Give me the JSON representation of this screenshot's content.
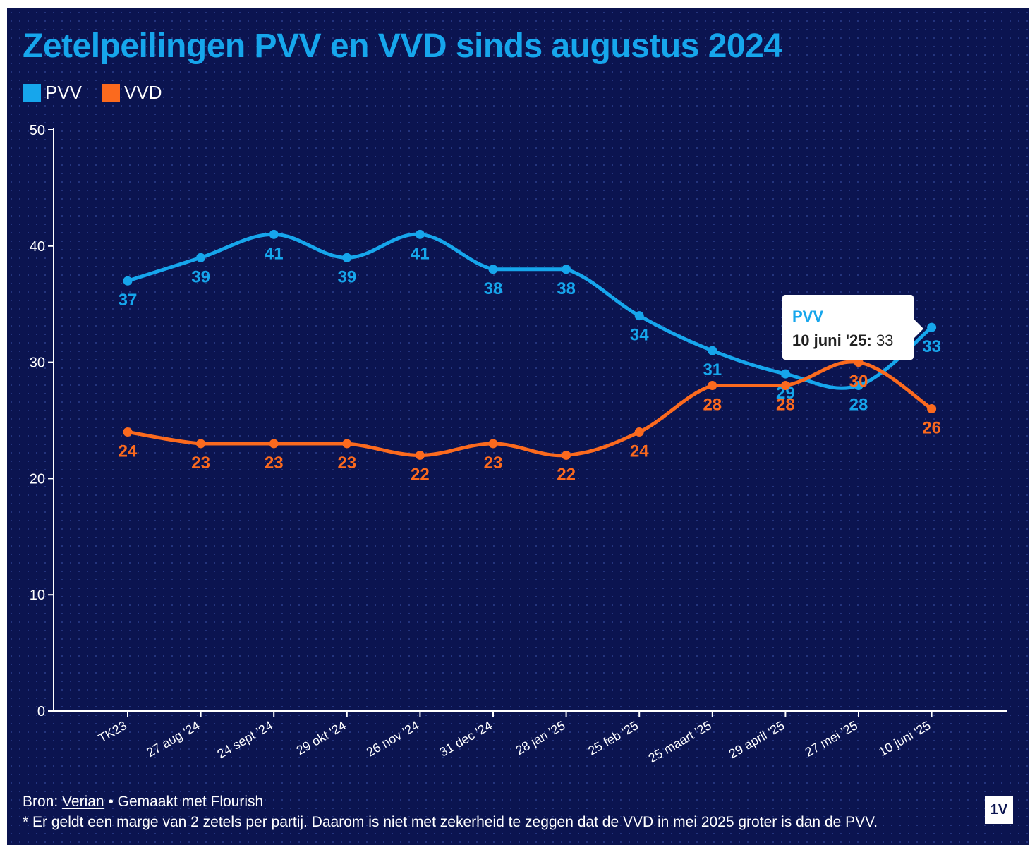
{
  "title": "Zetelpeilingen PVV en VVD sinds augustus 2024",
  "legend": [
    {
      "label": "PVV",
      "color": "#16a6ec"
    },
    {
      "label": "VVD",
      "color": "#fb6a1e"
    }
  ],
  "chart_data": {
    "type": "line",
    "categories": [
      "TK23",
      "27 aug '24",
      "24 sept '24",
      "29 okt '24",
      "26 nov '24",
      "31 dec '24",
      "28 jan '25",
      "25 feb '25",
      "25 maart '25",
      "29 april '25",
      "27 mei '25",
      "10 juni '25"
    ],
    "series": [
      {
        "name": "PVV",
        "color": "#16a6ec",
        "values": [
          37,
          39,
          41,
          39,
          41,
          38,
          38,
          34,
          31,
          29,
          28,
          33
        ]
      },
      {
        "name": "VVD",
        "color": "#fb6a1e",
        "values": [
          24,
          23,
          23,
          23,
          22,
          23,
          22,
          24,
          28,
          28,
          30,
          26
        ]
      }
    ],
    "ylim": [
      0,
      50
    ],
    "yticks": [
      0,
      10,
      20,
      30,
      40,
      50
    ],
    "xlabel": "",
    "ylabel": "",
    "grid": false,
    "legend_position": "top-left"
  },
  "tooltip": {
    "series": "PVV",
    "label": "10 juni '25:",
    "value": "33"
  },
  "footer": {
    "source_prefix": "Bron:",
    "source_name": "Verian",
    "made_with": "• Gemaakt met Flourish",
    "note": "* Er geldt een marge van 2 zetels per partij. Daarom is niet met zekerheid te zeggen dat de VVD in mei 2025 groter is dan de PVV."
  },
  "logo_text": "1V"
}
